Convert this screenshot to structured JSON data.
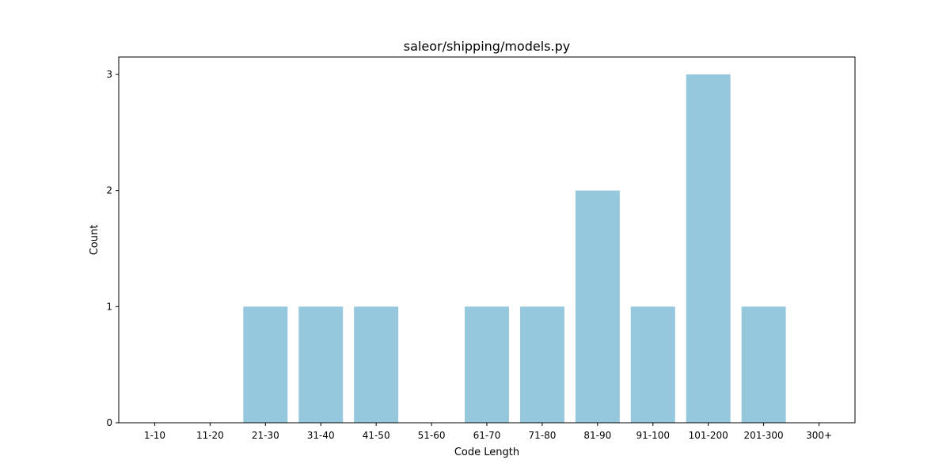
{
  "chart_data": {
    "type": "bar",
    "title": "saleor/shipping/models.py",
    "xlabel": "Code Length",
    "ylabel": "Count",
    "categories": [
      "1-10",
      "11-20",
      "21-30",
      "31-40",
      "41-50",
      "51-60",
      "61-70",
      "71-80",
      "81-90",
      "91-100",
      "101-200",
      "201-300",
      "300+"
    ],
    "values": [
      0,
      0,
      1,
      1,
      1,
      0,
      1,
      1,
      2,
      1,
      3,
      1,
      0
    ],
    "yticks": [
      0,
      1,
      2,
      3
    ],
    "ylim": [
      0,
      3.15
    ],
    "bar_color": "#95c8dc",
    "grid": false,
    "legend": "none"
  }
}
